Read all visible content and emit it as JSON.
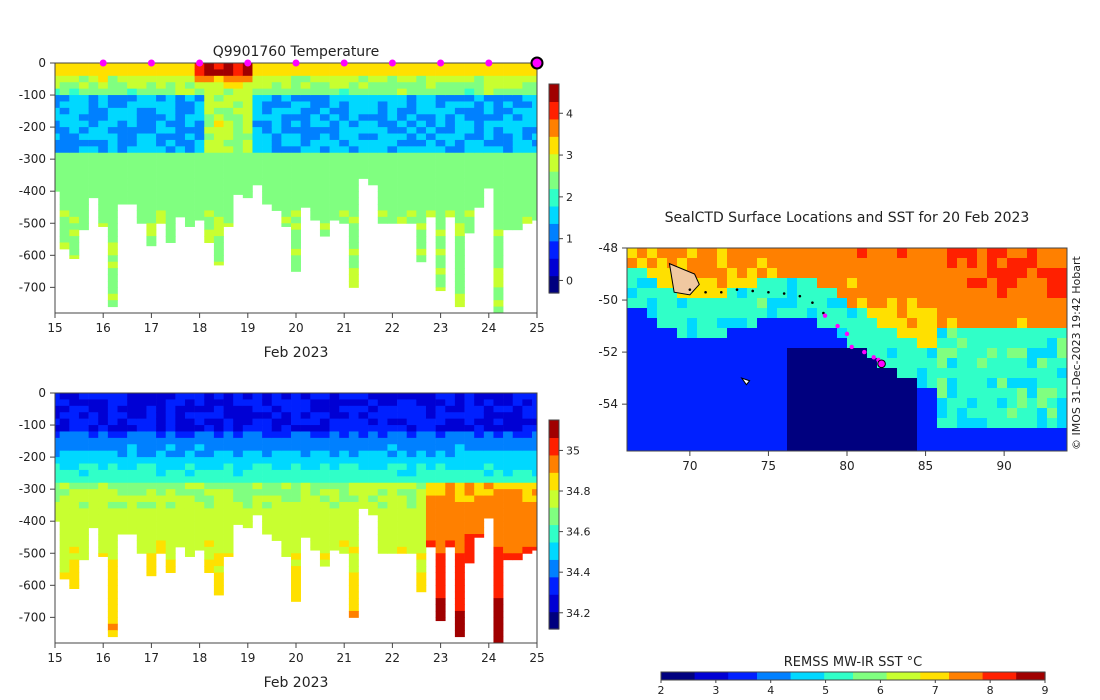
{
  "colors": {
    "jet": [
      "#00007f",
      "#0000d4",
      "#0020ff",
      "#0080ff",
      "#00d8ff",
      "#30ffc8",
      "#80ff80",
      "#c8ff30",
      "#ffe000",
      "#ff8000",
      "#ff2000",
      "#a00000"
    ],
    "marker": "#ff00ff",
    "track": "#000000"
  },
  "chart_data": [
    {
      "type": "heatmap",
      "panel": "temperature",
      "title": "Q9901760  Temperature",
      "xlabel": "Feb 2023",
      "ylabel": "",
      "xlim": [
        15,
        25
      ],
      "ylim": [
        -780,
        0
      ],
      "xticks": [
        "15",
        "16",
        "17",
        "18",
        "19",
        "20",
        "21",
        "22",
        "23",
        "24",
        "25"
      ],
      "yticks": [
        "0",
        "-100",
        "-200",
        "-300",
        "-400",
        "-500",
        "-600",
        "-700"
      ],
      "colorbar": {
        "range": [
          -0.3,
          4.7
        ],
        "ticks": [
          "0",
          "1",
          "2",
          "3",
          "4"
        ]
      },
      "profile_markers_x": [
        16,
        17,
        18,
        19,
        20,
        21,
        22,
        23,
        24
      ],
      "latest_marker_x": 25,
      "profiles": [
        {
          "x": 15.0,
          "depth": 400
        },
        {
          "x": 15.2,
          "depth": 580
        },
        {
          "x": 15.4,
          "depth": 610
        },
        {
          "x": 15.6,
          "depth": 520
        },
        {
          "x": 15.8,
          "depth": 420
        },
        {
          "x": 16.0,
          "depth": 510
        },
        {
          "x": 16.2,
          "depth": 760
        },
        {
          "x": 16.4,
          "depth": 440
        },
        {
          "x": 16.6,
          "depth": 440
        },
        {
          "x": 16.8,
          "depth": 500
        },
        {
          "x": 17.0,
          "depth": 570
        },
        {
          "x": 17.2,
          "depth": 500
        },
        {
          "x": 17.4,
          "depth": 560
        },
        {
          "x": 17.6,
          "depth": 480
        },
        {
          "x": 17.8,
          "depth": 510
        },
        {
          "x": 18.0,
          "depth": 490
        },
        {
          "x": 18.2,
          "depth": 560
        },
        {
          "x": 18.4,
          "depth": 630
        },
        {
          "x": 18.6,
          "depth": 510
        },
        {
          "x": 18.8,
          "depth": 410
        },
        {
          "x": 19.0,
          "depth": 420
        },
        {
          "x": 19.2,
          "depth": 380
        },
        {
          "x": 19.4,
          "depth": 440
        },
        {
          "x": 19.6,
          "depth": 460
        },
        {
          "x": 19.8,
          "depth": 510
        },
        {
          "x": 20.0,
          "depth": 650
        },
        {
          "x": 20.2,
          "depth": 450
        },
        {
          "x": 20.4,
          "depth": 490
        },
        {
          "x": 20.6,
          "depth": 540
        },
        {
          "x": 20.8,
          "depth": 490
        },
        {
          "x": 21.0,
          "depth": 500
        },
        {
          "x": 21.2,
          "depth": 700
        },
        {
          "x": 21.4,
          "depth": 360
        },
        {
          "x": 21.6,
          "depth": 380
        },
        {
          "x": 21.8,
          "depth": 500
        },
        {
          "x": 22.0,
          "depth": 500
        },
        {
          "x": 22.2,
          "depth": 500
        },
        {
          "x": 22.4,
          "depth": 500
        },
        {
          "x": 22.6,
          "depth": 620
        },
        {
          "x": 22.8,
          "depth": 480
        },
        {
          "x": 23.0,
          "depth": 710
        },
        {
          "x": 23.2,
          "depth": 480
        },
        {
          "x": 23.4,
          "depth": 760
        },
        {
          "x": 23.6,
          "depth": 530
        },
        {
          "x": 23.8,
          "depth": 450
        },
        {
          "x": 24.0,
          "depth": 390
        },
        {
          "x": 24.2,
          "depth": 780
        },
        {
          "x": 24.4,
          "depth": 520
        },
        {
          "x": 24.6,
          "depth": 520
        },
        {
          "x": 24.8,
          "depth": 500
        },
        {
          "x": 25.0,
          "depth": 490
        }
      ]
    },
    {
      "type": "heatmap",
      "panel": "salinity",
      "title": "",
      "xlabel": "Feb 2023",
      "ylabel": "",
      "xlim": [
        15,
        25
      ],
      "ylim": [
        -780,
        0
      ],
      "xticks": [
        "15",
        "16",
        "17",
        "18",
        "19",
        "20",
        "21",
        "22",
        "23",
        "24",
        "25"
      ],
      "yticks": [
        "0",
        "-100",
        "-200",
        "-300",
        "-400",
        "-500",
        "-600",
        "-700"
      ],
      "colorbar": {
        "range": [
          34.12,
          35.15
        ],
        "ticks": [
          "34.2",
          "34.4",
          "34.6",
          "34.8",
          "35"
        ]
      }
    },
    {
      "type": "scatter",
      "panel": "map",
      "title": "SealCTD Surface Locations and SST for 20 Feb 2023",
      "xlabel": "",
      "ylabel": "",
      "xlim": [
        66,
        94
      ],
      "ylim": [
        -55.8,
        -48
      ],
      "xticks": [
        "70",
        "75",
        "80",
        "85",
        "90"
      ],
      "yticks": [
        "-48",
        "-50",
        "-52",
        "-54"
      ],
      "colorbar": {
        "label": "REMSS MW-IR SST °C",
        "range": [
          2,
          9
        ],
        "ticks": [
          "2",
          "3",
          "4",
          "5",
          "6",
          "7",
          "8",
          "9"
        ]
      },
      "track": [
        {
          "lon": 70.0,
          "lat": -49.6
        },
        {
          "lon": 71.0,
          "lat": -49.7
        },
        {
          "lon": 72.0,
          "lat": -49.7
        },
        {
          "lon": 73.0,
          "lat": -49.6
        },
        {
          "lon": 74.0,
          "lat": -49.65
        },
        {
          "lon": 75.0,
          "lat": -49.7
        },
        {
          "lon": 76.0,
          "lat": -49.75
        },
        {
          "lon": 77.0,
          "lat": -49.85
        },
        {
          "lon": 77.8,
          "lat": -50.1
        },
        {
          "lon": 78.5,
          "lat": -50.5
        }
      ],
      "surface_locations": [
        {
          "lon": 78.6,
          "lat": -50.6
        },
        {
          "lon": 79.4,
          "lat": -51.0
        },
        {
          "lon": 80.0,
          "lat": -51.3
        },
        {
          "lon": 80.3,
          "lat": -51.8
        },
        {
          "lon": 81.1,
          "lat": -52.0
        },
        {
          "lon": 81.7,
          "lat": -52.2
        },
        {
          "lon": 82.0,
          "lat": -52.3
        }
      ],
      "latest_location": {
        "lon": 82.2,
        "lat": -52.45
      },
      "copyright": "© IMOS 31-Dec-2023 19:42 Hobart"
    }
  ]
}
